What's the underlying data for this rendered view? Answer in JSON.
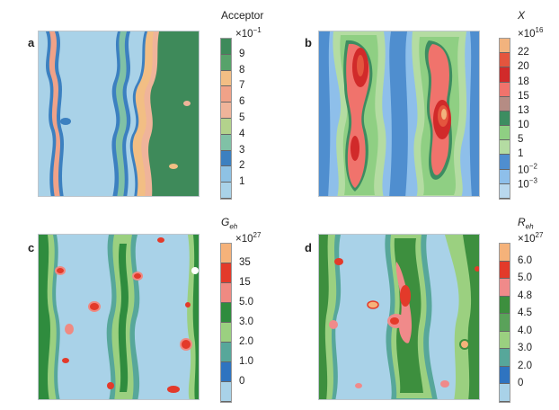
{
  "panels": [
    {
      "letter": "a",
      "title": "Acceptor",
      "title_sub": "",
      "title_italic": false,
      "exp_base": "×10",
      "exp_power": "−1",
      "ticks": [
        "9",
        "8",
        "7",
        "6",
        "5",
        "4",
        "3",
        "2",
        "1"
      ],
      "colors": [
        "#3e8a5a",
        "#57a26a",
        "#f2be84",
        "#f0a288",
        "#efb49a",
        "#b3d28c",
        "#80c1a6",
        "#3c80c0",
        "#8ec2e4",
        "#a9d2e8"
      ]
    },
    {
      "letter": "b",
      "title": "X",
      "title_sub": "",
      "title_italic": true,
      "exp_base": "×10",
      "exp_power": "16",
      "ticks": [
        "22",
        "20",
        "18",
        "15",
        "13",
        "10",
        "5",
        "1",
        "10−2",
        "10−3"
      ],
      "colors": [
        "#f2b37e",
        "#e4553e",
        "#d12a2a",
        "#f0736c",
        "#b58c84",
        "#3d8d61",
        "#8fcf83",
        "#b4dca2",
        "#4f8ecf",
        "#8ebfea",
        "#b9d8ee"
      ]
    },
    {
      "letter": "c",
      "title": "G",
      "title_sub": "eh",
      "title_italic": true,
      "exp_base": "×10",
      "exp_power": "27",
      "ticks": [
        "35",
        "15",
        "5.0",
        "3.0",
        "2.0",
        "1.0",
        "0"
      ],
      "colors": [
        "#f5b27a",
        "#e33a2a",
        "#ef8a82",
        "#2f8c3e",
        "#9bd080",
        "#57a79a",
        "#2f74c0",
        "#a9d2e8"
      ]
    },
    {
      "letter": "d",
      "title": "R",
      "title_sub": "eh",
      "title_italic": true,
      "exp_base": "×10",
      "exp_power": "27",
      "ticks": [
        "6.0",
        "5.0",
        "4.8",
        "4.5",
        "4.0",
        "3.0",
        "2.0",
        "0"
      ],
      "colors": [
        "#f5b27a",
        "#e33a2a",
        "#f08a8a",
        "#3d8f3e",
        "#5aa25a",
        "#9bd080",
        "#57a79a",
        "#2f74c0",
        "#a9d2e8"
      ]
    }
  ]
}
